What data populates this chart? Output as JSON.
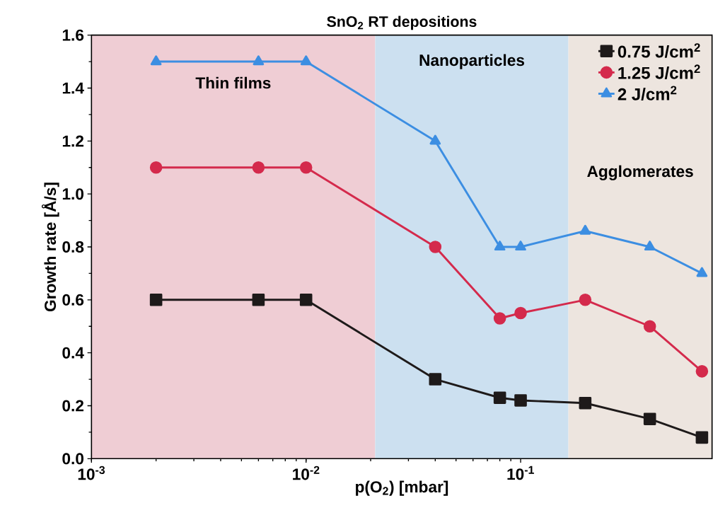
{
  "chart_data": {
    "type": "line",
    "title": "SnO$_{2}$ RT depositions",
    "xlabel": "p(O$_{2}$) [mbar]",
    "ylabel": "Growth rate [Å/s]",
    "log": "x",
    "xlim": [
      0.001,
      0.78
    ],
    "ylim": [
      0,
      1.6
    ],
    "xticks": [
      {
        "value": 0.001,
        "label": "10$^{-3}$"
      },
      {
        "value": 0.01,
        "label": "10$^{-2}$"
      },
      {
        "value": 0.1,
        "label": "10$^{-1}$"
      }
    ],
    "yticks": [
      {
        "value": 0,
        "label": "0.0"
      },
      {
        "value": 0.2,
        "label": "0.2"
      },
      {
        "value": 0.4,
        "label": "0.4"
      },
      {
        "value": 0.6,
        "label": "0.6"
      },
      {
        "value": 0.8,
        "label": "0.8"
      },
      {
        "value": 1.0,
        "label": "1.0"
      },
      {
        "value": 1.2,
        "label": "1.2"
      },
      {
        "value": 1.4,
        "label": "1.4"
      },
      {
        "value": 1.6,
        "label": "1.6"
      }
    ],
    "x": [
      0.002,
      0.006,
      0.01,
      0.04,
      0.08,
      0.1,
      0.2,
      0.4,
      0.7
    ],
    "series": [
      {
        "name": "0.75 J/cm$^{2}$",
        "color": "#1e1a1a",
        "marker": "square",
        "values": [
          0.6,
          0.6,
          0.6,
          0.3,
          0.23,
          0.22,
          0.21,
          0.15,
          0.08
        ]
      },
      {
        "name": "1.25 J/cm$^{2}$",
        "color": "#d42a4c",
        "marker": "circle",
        "values": [
          1.1,
          1.1,
          1.1,
          0.8,
          0.53,
          0.55,
          0.6,
          0.5,
          0.33
        ]
      },
      {
        "name": "2 J/cm$^{2}$",
        "color": "#3c8ee2",
        "marker": "triangle",
        "values": [
          1.5,
          1.5,
          1.5,
          1.2,
          0.8,
          0.8,
          0.86,
          0.8,
          0.7
        ]
      }
    ],
    "bands": [
      {
        "axis": "x",
        "from": 0.001,
        "to": 0.021,
        "label": "Thin films",
        "color": "#efcdd4"
      },
      {
        "axis": "x",
        "from": 0.021,
        "to": 0.167,
        "label": "Nanoparticles",
        "color": "#cce0f0"
      },
      {
        "axis": "x",
        "from": 0.167,
        "to": 0.78,
        "label": "Agglomerates",
        "color": "#ede5df"
      }
    ],
    "grid": false,
    "legend": "top right",
    "line_style": "solid"
  }
}
